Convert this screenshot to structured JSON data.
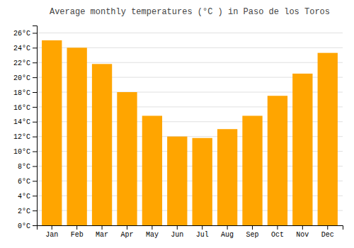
{
  "chart_data": {
    "type": "bar",
    "title": "Average monthly temperatures (°C ) in Paso de los Toros",
    "categories": [
      "Jan",
      "Feb",
      "Mar",
      "Apr",
      "May",
      "Jun",
      "Jul",
      "Aug",
      "Sep",
      "Oct",
      "Nov",
      "Dec"
    ],
    "values": [
      25.0,
      24.0,
      21.8,
      18.0,
      14.8,
      12.0,
      11.8,
      13.0,
      14.8,
      17.5,
      20.5,
      23.3
    ],
    "color": "#FFA500",
    "ylim": [
      0,
      27
    ],
    "yticks": [
      {
        "value": 0,
        "label": "0°C"
      },
      {
        "value": 2,
        "label": "2°C"
      },
      {
        "value": 4,
        "label": "4°C"
      },
      {
        "value": 6,
        "label": "6°C"
      },
      {
        "value": 8,
        "label": "8°C"
      },
      {
        "value": 10,
        "label": "10°C"
      },
      {
        "value": 12,
        "label": "12°C"
      },
      {
        "value": 14,
        "label": "14°C"
      },
      {
        "value": 16,
        "label": "16°C"
      },
      {
        "value": 18,
        "label": "18°C"
      },
      {
        "value": 20,
        "label": "20°C"
      },
      {
        "value": 22,
        "label": "22°C"
      },
      {
        "value": 24,
        "label": "24°C"
      },
      {
        "value": 26,
        "label": "26°C"
      }
    ],
    "grid": true
  }
}
